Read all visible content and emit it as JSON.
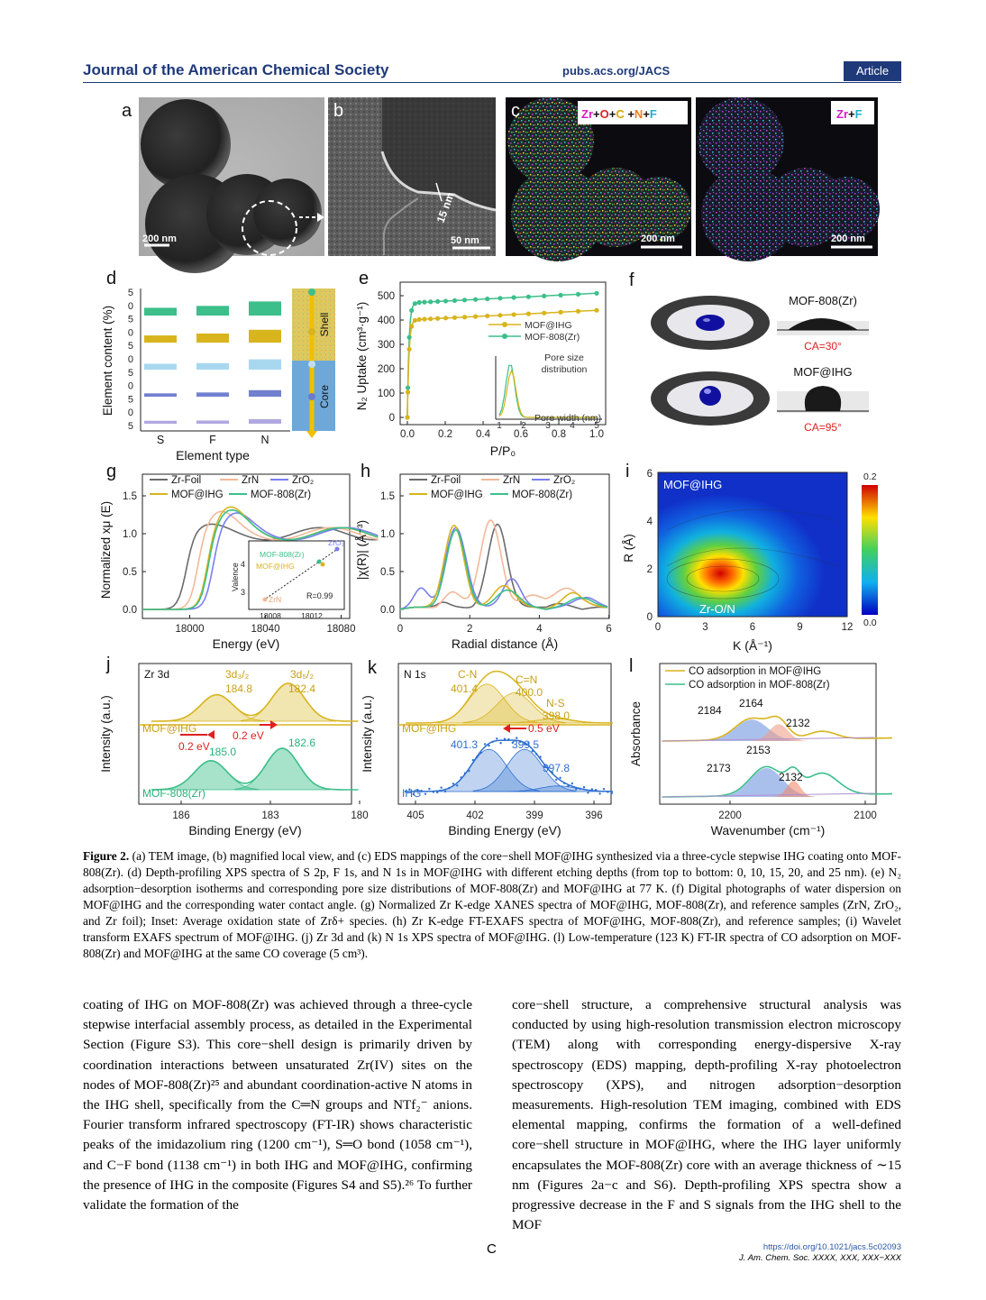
{
  "header": {
    "journal": "Journal of the American Chemical Society",
    "site": "pubs.acs.org/JACS",
    "article_type": "Article"
  },
  "figure": {
    "panels": {
      "a": {
        "letter": "a",
        "scale": "200 nm"
      },
      "b": {
        "letter": "b",
        "scale": "50 nm",
        "thickness": "15 nm"
      },
      "c": {
        "letter": "c",
        "scale": "200 nm",
        "legend_parts": [
          "Zr",
          "+",
          "O",
          "+",
          "C",
          " +",
          "N",
          "+",
          "F"
        ]
      },
      "c2": {
        "scale": "200 nm",
        "legend_parts": [
          "Zr",
          "+",
          "F"
        ]
      },
      "d": {
        "letter": "d",
        "ylabel": "Element content (%)",
        "xlabel": "Element type",
        "categories": [
          "S",
          "F",
          "N"
        ],
        "shell": "Shell",
        "core": "Core",
        "yticks": [
          "5",
          "0",
          "5",
          "0",
          "5",
          "0",
          "5",
          "0",
          "5",
          "0",
          "5"
        ]
      },
      "e": {
        "letter": "e",
        "ylabel": "N₂ Uptake (cm³·g⁻¹)",
        "xlabel": "P/P₀",
        "legend": [
          "MOF@IHG",
          "MOF-808(Zr)"
        ],
        "inset_title": "Pore size distribution",
        "inset_xlabel": "Pore width (nm)",
        "yticks": [
          "0",
          "100",
          "200",
          "300",
          "400",
          "500"
        ],
        "xticks": [
          "0.0",
          "0.2",
          "0.4",
          "0.6",
          "0.8",
          "1.0"
        ],
        "inset_xticks": [
          "1",
          "2",
          "3",
          "4",
          "5"
        ]
      },
      "f": {
        "letter": "f",
        "label1": "MOF-808(Zr)",
        "ca1": "CA=30°",
        "label2": "MOF@IHG",
        "ca2": "CA=95°"
      },
      "g": {
        "letter": "g",
        "ylabel": "Normalized xμ (E)",
        "xlabel": "Energy (eV)",
        "legend": [
          "Zr-Foil",
          "ZrN",
          "ZrO₂",
          "MOF@IHG",
          "MOF-808(Zr)"
        ],
        "xticks": [
          "18000",
          "18040",
          "18080"
        ],
        "yticks": [
          "0.0",
          "0.5",
          "1.0",
          "1.5"
        ],
        "inset_ylabel": "Valence",
        "inset_labels": [
          "MOF-808(Zr)",
          "MOF@IHG",
          "ZrO₂",
          "ZrN",
          "R=0.99"
        ],
        "inset_xticks": [
          "18008",
          "18012"
        ],
        "inset_yticks": [
          "3",
          "4"
        ]
      },
      "h": {
        "letter": "h",
        "ylabel": "|χ(R)| (Å⁻³)",
        "xlabel": "Radial distance (Å)",
        "legend": [
          "Zr-Foil",
          "ZrN",
          "ZrO₂",
          "MOF@IHG",
          "MOF-808(Zr)"
        ],
        "xticks": [
          "0",
          "2",
          "4",
          "6"
        ],
        "yticks": [
          "0.0",
          "0.5",
          "1.0",
          "1.5"
        ]
      },
      "i": {
        "letter": "i",
        "title": "MOF@IHG",
        "label": "Zr-O/N",
        "ylabel": "R (Å)",
        "xlabel": "K (Å⁻¹)",
        "xticks": [
          "0",
          "3",
          "6",
          "9",
          "12"
        ],
        "yticks": [
          "0",
          "2",
          "4",
          "6"
        ],
        "cbar": [
          "0.2",
          "0.0"
        ]
      },
      "j": {
        "letter": "j",
        "title": "Zr 3d",
        "ylabel": "Intensity (a.u.)",
        "xlabel": "Binding Energy (eV)",
        "peak1": "3d₃/₂",
        "peak2": "3d₅/₂",
        "values_top": [
          "184.8",
          "182.4"
        ],
        "values_bottom": [
          "185.0",
          "182.6"
        ],
        "shift": "0.2 eV",
        "sample_top": "MOF@IHG",
        "sample_bottom": "MOF-808(Zr)",
        "xticks": [
          "186",
          "183",
          "180"
        ]
      },
      "k": {
        "letter": "k",
        "title": "N 1s",
        "ylabel": "Intensity (a.u.)",
        "xlabel": "Binding Energy (eV)",
        "peaks": [
          "C-N",
          "C=N",
          "N-S"
        ],
        "values_top": [
          "401.4",
          "400.0",
          "398.0"
        ],
        "values_bottom": [
          "401.3",
          "399.5",
          "397.8"
        ],
        "shift": "0.5 eV",
        "sample_top": "MOF@IHG",
        "sample_bottom": "IHG",
        "xticks": [
          "405",
          "402",
          "399",
          "396"
        ]
      },
      "l": {
        "letter": "l",
        "ylabel": "Absorbance",
        "xlabel": "Wavenumber (cm⁻¹)",
        "legend": [
          "CO adsorption in MOF@IHG",
          "CO adsorption in MOF-808(Zr)"
        ],
        "peaks_top": [
          "2184",
          "2164",
          "2132"
        ],
        "peaks_bottom": [
          "2173",
          "2153",
          "2132"
        ],
        "xticks": [
          "2200",
          "2100"
        ]
      }
    },
    "colors": {
      "mof": "#3cbf8a",
      "ihg": "#d8b41d",
      "foil": "#6b6b6b",
      "zrn": "#f2b99a",
      "zro2": "#7b7ff0",
      "red": "#e02020"
    }
  },
  "caption": {
    "label": "Figure 2.",
    "text": "(a) TEM image, (b) magnified local view, and (c) EDS mappings of the core−shell MOF@IHG synthesized via a three-cycle stepwise IHG coating onto MOF-808(Zr). (d) Depth-profiling XPS spectra of S 2p, F 1s, and N 1s in MOF@IHG with different etching depths (from top to bottom: 0, 10, 15, 20, and 25 nm). (e) N₂ adsorption−desorption isotherms and corresponding pore size distributions of MOF-808(Zr) and MOF@IHG at 77 K. (f) Digital photographs of water dispersion on MOF@IHG and the corresponding water contact angle. (g) Normalized Zr K-edge XANES spectra of MOF@IHG, MOF-808(Zr), and reference samples (ZrN, ZrO₂, and Zr foil); Inset: Average oxidation state of Zrδ+ species. (h) Zr K-edge FT-EXAFS spectra of MOF@IHG, MOF-808(Zr), and reference samples; (i) Wavelet transform EXAFS spectrum of MOF@IHG. (j) Zr 3d and (k) N 1s XPS spectra of MOF@IHG. (l) Low-temperature (123 K) FT-IR spectra of CO adsorption on MOF-808(Zr) and MOF@IHG at the same CO coverage (5 cm³)."
  },
  "body": {
    "left": "coating of IHG on MOF-808(Zr) was achieved through a three-cycle stepwise interfacial assembly process, as detailed in the Experimental Section (Figure S3). This core−shell design is primarily driven by coordination interactions between unsaturated Zr(IV) sites on the nodes of MOF-808(Zr)²⁵ and abundant coordination-active N atoms in the IHG shell, specifically from the C═N groups and NTf₂⁻ anions. Fourier transform infrared spectroscopy (FT-IR) shows characteristic peaks of the imidazolium ring (1200 cm⁻¹), S═O bond (1058 cm⁻¹), and C−F bond (1138 cm⁻¹) in both IHG and MOF@IHG, confirming the presence of IHG in the composite (Figures S4 and S5).²⁶ To further validate the formation of the",
    "right": "core−shell structure, a comprehensive structural analysis was conducted by using high-resolution transmission electron microscopy (TEM) along with corresponding energy-dispersive X-ray spectroscopy (EDS) mapping, depth-profiling X-ray photoelectron spectroscopy (XPS), and nitrogen adsorption−desorption measurements. High-resolution TEM imaging, combined with EDS elemental mapping, confirms the formation of a well-defined core−shell structure in MOF@IHG, where the IHG layer uniformly encapsulates the MOF-808(Zr) core with an average thickness of ∼15 nm (Figures 2a−c and S6). Depth-profiling XPS spectra show a progressive decrease in the F and S signals from the IHG shell to the MOF"
  },
  "footer": {
    "page": "C",
    "doi": "https://doi.org/10.1021/jacs.5c02093",
    "citation": "J. Am. Chem. Soc. XXXX, XXX, XXX−XXX"
  }
}
